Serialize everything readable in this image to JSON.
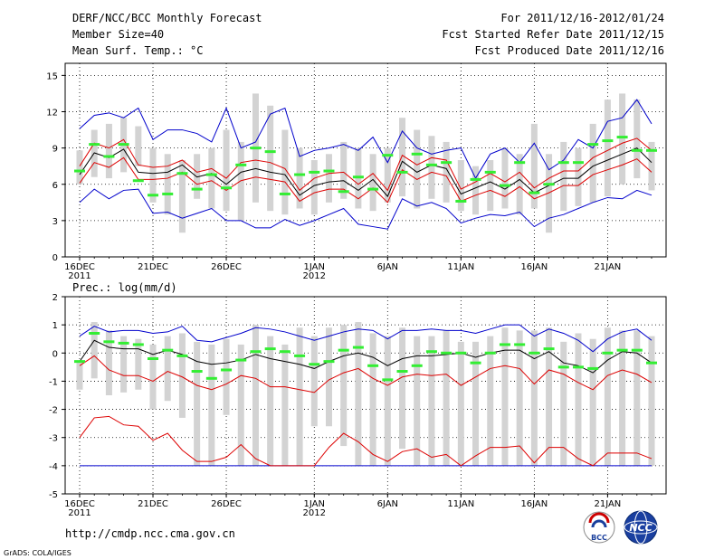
{
  "header": {
    "title": "DERF/NCC/BCC Monthly Forecast",
    "member_size": "Member Size=40",
    "variable": "Mean Surf. Temp.: °C",
    "period": "For 2011/12/16-2012/01/24",
    "started": "Fcst Started Refer Date 2011/12/15",
    "produced": "Fcst Produced Date 2011/12/16"
  },
  "footer": {
    "url": "http://cmdp.ncc.cma.gov.cn",
    "credit": "GrADS: COLA/IGES",
    "logo_bcc": "BCC",
    "logo_ncc": "NCC"
  },
  "colors": {
    "grey_bar": "#d3d3d3",
    "green": "#33ee33",
    "red": "#dd0000",
    "blue": "#0000cc",
    "black": "#000000"
  },
  "x_axis": {
    "ticks": [
      {
        "day": 1,
        "label": "16DEC",
        "sub": "2011"
      },
      {
        "day": 6,
        "label": "21DEC",
        "sub": ""
      },
      {
        "day": 11,
        "label": "26DEC",
        "sub": ""
      },
      {
        "day": 17,
        "label": "1JAN",
        "sub": "2012"
      },
      {
        "day": 22,
        "label": "6JAN",
        "sub": ""
      },
      {
        "day": 27,
        "label": "11JAN",
        "sub": ""
      },
      {
        "day": 32,
        "label": "16JAN",
        "sub": ""
      },
      {
        "day": 37,
        "label": "21JAN",
        "sub": ""
      }
    ]
  },
  "chart_data": [
    {
      "type": "box-ensemble",
      "title": "Mean Surf. Temp.: °C",
      "ylim": [
        0,
        16
      ],
      "yticks": [
        0,
        3,
        6,
        9,
        12,
        15
      ],
      "grid": true,
      "x_days": [
        1,
        2,
        3,
        4,
        5,
        6,
        7,
        8,
        9,
        10,
        11,
        12,
        13,
        14,
        15,
        16,
        17,
        18,
        19,
        20,
        21,
        22,
        23,
        24,
        25,
        26,
        27,
        28,
        29,
        30,
        31,
        32,
        33,
        34,
        35,
        36,
        37,
        38,
        39,
        40
      ],
      "series": [
        {
          "name": "spread_low",
          "values": [
            6.0,
            6.6,
            6.5,
            7.0,
            7.5,
            4.5,
            3.5,
            2.0,
            4.8,
            4.0,
            3.8,
            3.0,
            4.5,
            3.8,
            3.5,
            4.0,
            3.5,
            4.5,
            4.8,
            4.0,
            3.8,
            4.5,
            5.0,
            4.0,
            4.8,
            4.5,
            3.8,
            3.5,
            3.8,
            4.0,
            3.5,
            4.0,
            2.0,
            3.8,
            4.2,
            4.5,
            5.0,
            6.0,
            6.5,
            5.5
          ]
        },
        {
          "name": "spread_high",
          "values": [
            8.8,
            10.5,
            11.0,
            11.5,
            10.8,
            9.0,
            8.5,
            8.0,
            8.5,
            9.0,
            10.5,
            9.5,
            13.5,
            12.5,
            10.5,
            9.0,
            8.0,
            8.5,
            9.5,
            9.0,
            8.5,
            9.0,
            11.5,
            10.5,
            10.0,
            9.5,
            8.0,
            7.5,
            8.0,
            9.0,
            8.5,
            11.0,
            8.5,
            9.5,
            9.0,
            11.0,
            13.0,
            13.5,
            13.0,
            9.5
          ]
        },
        {
          "name": "forecast_green",
          "values": [
            7.1,
            9.3,
            8.3,
            9.3,
            6.3,
            5.1,
            5.2,
            6.9,
            5.6,
            6.8,
            5.7,
            7.6,
            9.0,
            8.7,
            5.2,
            6.8,
            7.0,
            7.1,
            5.4,
            6.6,
            5.6,
            8.4,
            7.0,
            8.5,
            7.6,
            7.8,
            4.6,
            6.4,
            7.0,
            5.9,
            7.8,
            5.3,
            6.0,
            7.8,
            7.8,
            9.3,
            9.6,
            9.9,
            8.8,
            8.8
          ]
        },
        {
          "name": "mean_black",
          "values": [
            6.8,
            8.6,
            8.2,
            8.9,
            7.0,
            6.9,
            7.0,
            7.6,
            6.6,
            6.9,
            6.0,
            7.0,
            7.3,
            7.0,
            6.8,
            5.1,
            5.9,
            6.2,
            6.3,
            5.5,
            6.4,
            5.0,
            7.9,
            7.0,
            7.6,
            7.3,
            5.2,
            5.7,
            6.2,
            5.6,
            6.4,
            5.3,
            5.9,
            6.5,
            6.5,
            7.5,
            8.0,
            8.5,
            9.0,
            7.8
          ]
        },
        {
          "name": "red_upper",
          "values": [
            7.5,
            9.4,
            9.0,
            9.7,
            7.6,
            7.4,
            7.5,
            8.0,
            7.0,
            7.3,
            6.5,
            7.8,
            8.0,
            7.8,
            7.3,
            5.5,
            6.5,
            6.9,
            7.0,
            6.0,
            6.9,
            5.5,
            8.4,
            7.6,
            8.2,
            8.0,
            5.6,
            6.2,
            6.9,
            6.2,
            7.0,
            5.7,
            6.5,
            7.1,
            7.1,
            8.2,
            8.8,
            9.4,
            9.8,
            8.8
          ]
        },
        {
          "name": "red_lower",
          "values": [
            6.1,
            7.8,
            7.4,
            8.2,
            6.4,
            6.4,
            6.5,
            7.0,
            6.0,
            6.3,
            5.5,
            6.3,
            6.6,
            6.4,
            6.2,
            4.6,
            5.3,
            5.6,
            5.6,
            4.8,
            5.7,
            4.5,
            7.2,
            6.4,
            7.0,
            6.7,
            4.6,
            5.1,
            5.5,
            5.0,
            5.8,
            4.8,
            5.3,
            5.9,
            5.9,
            6.8,
            7.2,
            7.6,
            8.1,
            7.0
          ]
        },
        {
          "name": "blue_upper",
          "values": [
            10.6,
            11.7,
            11.9,
            11.5,
            12.3,
            9.7,
            10.5,
            10.5,
            10.2,
            9.5,
            12.3,
            9.0,
            9.5,
            11.8,
            12.3,
            8.3,
            8.8,
            9.0,
            9.3,
            8.8,
            9.9,
            7.8,
            10.4,
            9.0,
            8.5,
            8.8,
            9.0,
            6.5,
            8.5,
            9.0,
            7.8,
            9.4,
            7.2,
            8.0,
            9.7,
            9.0,
            11.2,
            11.5,
            13.0,
            11.0
          ]
        },
        {
          "name": "blue_lower",
          "values": [
            4.5,
            5.6,
            4.8,
            5.5,
            5.6,
            3.6,
            3.7,
            3.2,
            3.6,
            4.0,
            3.0,
            3.0,
            2.4,
            2.4,
            3.1,
            2.6,
            3.0,
            3.5,
            4.0,
            2.7,
            2.5,
            2.3,
            4.8,
            4.2,
            4.5,
            4.0,
            2.8,
            3.2,
            3.5,
            3.4,
            3.7,
            2.5,
            3.2,
            3.5,
            4.0,
            4.5,
            4.9,
            4.8,
            5.5,
            5.1
          ]
        }
      ]
    },
    {
      "type": "box-ensemble",
      "title": "Prec.: log(mm/d)",
      "ylim": [
        -5,
        2
      ],
      "yticks": [
        -5,
        -4,
        -3,
        -2,
        -1,
        0,
        1,
        2
      ],
      "grid": true,
      "x_days": [
        1,
        2,
        3,
        4,
        5,
        6,
        7,
        8,
        9,
        10,
        11,
        12,
        13,
        14,
        15,
        16,
        17,
        18,
        19,
        20,
        21,
        22,
        23,
        24,
        25,
        26,
        27,
        28,
        29,
        30,
        31,
        32,
        33,
        34,
        35,
        36,
        37,
        38,
        39,
        40
      ],
      "series": [
        {
          "name": "spread_low",
          "values": [
            -1.3,
            -0.9,
            -1.5,
            -1.4,
            -1.3,
            -2.0,
            -1.7,
            -2.3,
            -4.0,
            -4.0,
            -2.2,
            -4.0,
            -4.0,
            -4.0,
            -4.0,
            -4.0,
            -2.6,
            -2.6,
            -3.3,
            -4.0,
            -4.0,
            -4.0,
            -3.4,
            -4.0,
            -4.0,
            -4.0,
            -4.0,
            -4.0,
            -4.0,
            -4.0,
            -4.0,
            -4.0,
            -4.0,
            -4.0,
            -4.0,
            -4.0,
            -4.0,
            -4.0,
            -4.0,
            -4.0
          ]
        },
        {
          "name": "spread_high",
          "values": [
            -0.3,
            1.1,
            0.8,
            0.6,
            0.5,
            0.3,
            0.6,
            0.7,
            0.4,
            0.3,
            0.5,
            0.3,
            1.0,
            0.6,
            0.3,
            0.9,
            0.6,
            0.9,
            1.0,
            1.1,
            0.7,
            0.6,
            0.9,
            0.6,
            0.6,
            0.8,
            0.4,
            0.4,
            0.6,
            0.9,
            0.8,
            0.8,
            0.9,
            0.4,
            0.7,
            0.5,
            0.9,
            0.8,
            0.8,
            0.6
          ]
        },
        {
          "name": "forecast_green",
          "values": [
            -0.3,
            0.7,
            0.4,
            0.35,
            0.3,
            -0.2,
            0.1,
            -0.1,
            -0.65,
            -0.9,
            -0.6,
            -0.25,
            0.05,
            0.15,
            0.05,
            -0.1,
            -0.4,
            -0.3,
            0.1,
            0.2,
            -0.45,
            -0.95,
            -0.65,
            -0.45,
            0.05,
            0.0,
            0.0,
            -0.35,
            0.0,
            0.3,
            0.3,
            0.0,
            0.15,
            -0.5,
            -0.5,
            -0.55,
            0.0,
            0.1,
            0.1,
            -0.35
          ]
        },
        {
          "name": "mean_black",
          "values": [
            -0.3,
            0.45,
            0.2,
            0.15,
            0.15,
            -0.05,
            0.1,
            -0.05,
            -0.3,
            -0.4,
            -0.35,
            -0.25,
            -0.05,
            -0.2,
            -0.3,
            -0.4,
            -0.55,
            -0.3,
            -0.1,
            0.0,
            -0.15,
            -0.45,
            -0.2,
            -0.1,
            -0.1,
            -0.05,
            0.0,
            -0.15,
            0.0,
            0.1,
            0.1,
            -0.2,
            0.05,
            -0.35,
            -0.45,
            -0.7,
            -0.25,
            0.05,
            0.0,
            -0.35
          ]
        },
        {
          "name": "red_upper",
          "values": [
            -0.45,
            -0.1,
            -0.6,
            -0.8,
            -0.8,
            -1.0,
            -0.65,
            -0.85,
            -1.15,
            -1.3,
            -1.1,
            -0.8,
            -0.9,
            -1.2,
            -1.2,
            -1.3,
            -1.4,
            -0.95,
            -0.7,
            -0.55,
            -0.9,
            -1.15,
            -0.85,
            -0.75,
            -0.8,
            -0.75,
            -1.15,
            -0.85,
            -0.55,
            -0.45,
            -0.55,
            -1.1,
            -0.6,
            -0.75,
            -1.05,
            -1.3,
            -0.8,
            -0.6,
            -0.75,
            -1.05
          ]
        },
        {
          "name": "red_lower",
          "values": [
            -3.0,
            -2.3,
            -2.25,
            -2.55,
            -2.6,
            -3.1,
            -2.85,
            -3.45,
            -3.85,
            -3.85,
            -3.7,
            -3.25,
            -3.75,
            -4.0,
            -4.0,
            -4.0,
            -4.0,
            -3.35,
            -2.85,
            -3.15,
            -3.6,
            -3.85,
            -3.5,
            -3.4,
            -3.7,
            -3.6,
            -4.0,
            -3.65,
            -3.35,
            -3.35,
            -3.3,
            -3.9,
            -3.35,
            -3.35,
            -3.75,
            -4.0,
            -3.55,
            -3.55,
            -3.55,
            -3.75
          ]
        },
        {
          "name": "blue_upper",
          "values": [
            0.6,
            0.95,
            0.75,
            0.8,
            0.8,
            0.7,
            0.75,
            0.95,
            0.45,
            0.4,
            0.55,
            0.7,
            0.9,
            0.85,
            0.75,
            0.6,
            0.45,
            0.6,
            0.75,
            0.85,
            0.8,
            0.5,
            0.8,
            0.8,
            0.85,
            0.8,
            0.8,
            0.7,
            0.85,
            1.0,
            1.0,
            0.6,
            0.85,
            0.7,
            0.45,
            0.05,
            0.5,
            0.75,
            0.85,
            0.45
          ]
        },
        {
          "name": "blue_lower",
          "values": [
            -4.0,
            -4.0,
            -4.0,
            -4.0,
            -4.0,
            -4.0,
            -4.0,
            -4.0,
            -4.0,
            -4.0,
            -4.0,
            -4.0,
            -4.0,
            -4.0,
            -4.0,
            -4.0,
            -4.0,
            -4.0,
            -4.0,
            -4.0,
            -4.0,
            -4.0,
            -4.0,
            -4.0,
            -4.0,
            -4.0,
            -4.0,
            -4.0,
            -4.0,
            -4.0,
            -4.0,
            -4.0,
            -4.0,
            -4.0,
            -4.0,
            -4.0,
            -4.0,
            -4.0,
            -4.0,
            -4.0
          ]
        }
      ]
    }
  ]
}
